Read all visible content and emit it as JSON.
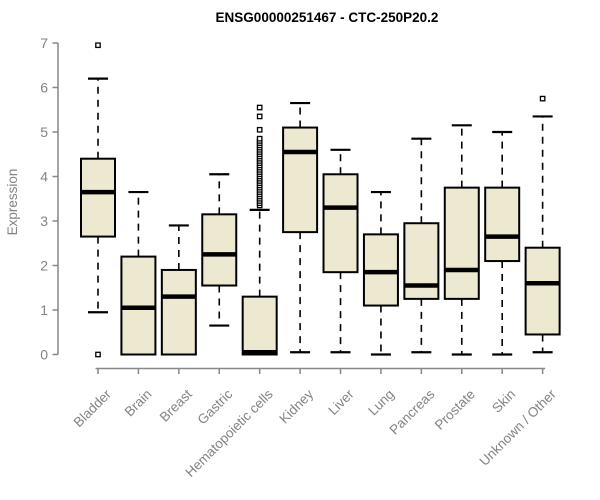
{
  "chart_data": {
    "type": "boxplot",
    "title": "ENSG00000251467 - CTC-250P20.2",
    "ylabel": "Expression",
    "xlabel": "",
    "ylim": [
      0,
      7
    ],
    "yticks": [
      0,
      1,
      2,
      3,
      4,
      5,
      6,
      7
    ],
    "grid": false,
    "legend": "none",
    "categories": [
      "Bladder",
      "Brain",
      "Breast",
      "Gastric",
      "Hematopoietic cells",
      "Kidney",
      "Liver",
      "Lung",
      "Pancreas",
      "Prostate",
      "Skin",
      "Unknown / Other"
    ],
    "series": [
      {
        "name": "Bladder",
        "low": 0.95,
        "q1": 2.65,
        "median": 3.65,
        "q3": 4.4,
        "high": 6.2,
        "outliers": [
          6.95,
          0.0
        ]
      },
      {
        "name": "Brain",
        "low": 0.0,
        "q1": 0.0,
        "median": 1.05,
        "q3": 2.2,
        "high": 3.65,
        "outliers": []
      },
      {
        "name": "Breast",
        "low": 0.0,
        "q1": 0.0,
        "median": 1.3,
        "q3": 1.9,
        "high": 2.9,
        "outliers": []
      },
      {
        "name": "Gastric",
        "low": 0.65,
        "q1": 1.55,
        "median": 2.25,
        "q3": 3.15,
        "high": 4.05,
        "outliers": []
      },
      {
        "name": "Hematopoietic cells",
        "low": 0.0,
        "q1": 0.0,
        "median": 0.05,
        "q3": 1.3,
        "high": 3.25,
        "outliers": [
          3.35,
          3.4,
          3.45,
          3.5,
          3.55,
          3.6,
          3.65,
          3.7,
          3.75,
          3.8,
          3.85,
          3.9,
          3.95,
          4.0,
          4.05,
          4.1,
          4.15,
          4.2,
          4.25,
          4.3,
          4.35,
          4.4,
          4.45,
          4.5,
          4.55,
          4.6,
          4.65,
          4.7,
          4.75,
          4.8,
          4.85,
          5.05,
          5.35,
          5.55
        ]
      },
      {
        "name": "Kidney",
        "low": 0.05,
        "q1": 2.75,
        "median": 4.55,
        "q3": 5.1,
        "high": 5.65,
        "outliers": []
      },
      {
        "name": "Liver",
        "low": 0.05,
        "q1": 1.85,
        "median": 3.3,
        "q3": 4.05,
        "high": 4.6,
        "outliers": []
      },
      {
        "name": "Lung",
        "low": 0.0,
        "q1": 1.1,
        "median": 1.85,
        "q3": 2.7,
        "high": 3.65,
        "outliers": []
      },
      {
        "name": "Pancreas",
        "low": 0.05,
        "q1": 1.25,
        "median": 1.55,
        "q3": 2.95,
        "high": 4.85,
        "outliers": []
      },
      {
        "name": "Prostate",
        "low": 0.0,
        "q1": 1.25,
        "median": 1.9,
        "q3": 3.75,
        "high": 5.15,
        "outliers": []
      },
      {
        "name": "Skin",
        "low": 0.0,
        "q1": 2.1,
        "median": 2.65,
        "q3": 3.75,
        "high": 5.0,
        "outliers": []
      },
      {
        "name": "Unknown / Other",
        "low": 0.05,
        "q1": 0.45,
        "median": 1.6,
        "q3": 2.4,
        "high": 5.35,
        "outliers": [
          5.75
        ]
      }
    ],
    "colors": {
      "box_fill": "#EDE8D0",
      "box_stroke": "#000000",
      "median": "#000000",
      "whisker": "#000000",
      "axis": "#878787",
      "tick_label": "#838383",
      "title": "#000000",
      "background": "#ffffff"
    }
  }
}
